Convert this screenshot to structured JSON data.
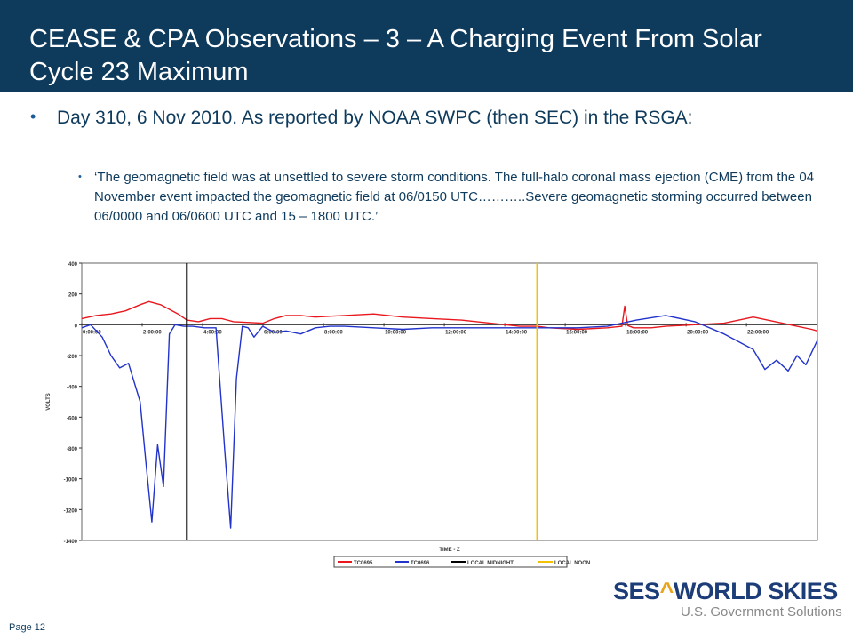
{
  "slide": {
    "title": "CEASE & CPA Observations  – 3 –  A Charging Event From Solar Cycle 23 Maximum",
    "bullet_main": "Day 310, 6 Nov 2010. As reported by NOAA SWPC (then SEC) in the RSGA:",
    "bullet_sub": "‘The geomagnetic field was at unsettled to severe storm conditions. The full-halo coronal mass ejection (CME) from the 04 November event impacted the geomagnetic field at 06/0150 UTC………..Severe geomagnetic storming occurred between 06/0000 and 06/0600 UTC and 15 – 1800 UTC.’",
    "page_label": "Page 12",
    "logo_part1": "SES",
    "logo_mark": "^",
    "logo_part2": "WORLD SKIES",
    "logo_sub": "U.S. Government Solutions",
    "colors": {
      "title_bg": "#0e3a5c",
      "text": "#0e3a5c",
      "logo_blue": "#1d3d78",
      "logo_gold": "#e8a41c"
    }
  },
  "chart_data": {
    "type": "line",
    "title": "",
    "xlabel": "TIME - Z",
    "ylabel": "VOLTS",
    "ylim": [
      -1400,
      400
    ],
    "y_ticks": [
      "400",
      "200",
      "0",
      "-200",
      "-400",
      "-600",
      "-800",
      "-1000",
      "-1200",
      "-1400"
    ],
    "x_ticks": [
      "0:00:00",
      "2:00:00",
      "4:00:00",
      "6:00:00",
      "8:00:00",
      "10:00:00",
      "12:00:00",
      "14:00:00",
      "16:00:00",
      "18:00:00",
      "20:00:00",
      "22:00:00"
    ],
    "xlim": [
      0,
      25.2
    ],
    "legend_position": "bottom",
    "vlines": [
      {
        "name": "LOCAL MIDNIGHT",
        "x": 3.6,
        "color": "#000000"
      },
      {
        "name": "LOCAL NOON",
        "x": 15.6,
        "color": "#f2c200"
      }
    ],
    "series": [
      {
        "name": "TC0695",
        "color": "#e8181e",
        "x": [
          0,
          0.5,
          1,
          1.5,
          2,
          2.3,
          2.7,
          3,
          3.3,
          3.6,
          4,
          4.4,
          4.8,
          5.2,
          6.2,
          6.6,
          7,
          7.5,
          8,
          9,
          10,
          11,
          12,
          13,
          14,
          15,
          15.6,
          16,
          17,
          18,
          18.5,
          18.6,
          18.7,
          18.9,
          19,
          19.5,
          20,
          21,
          22,
          23,
          24,
          25,
          25.2
        ],
        "y": [
          40,
          60,
          70,
          90,
          130,
          150,
          130,
          100,
          70,
          30,
          20,
          40,
          40,
          20,
          10,
          40,
          60,
          60,
          50,
          60,
          70,
          50,
          40,
          30,
          10,
          -10,
          -10,
          -20,
          -30,
          -20,
          -10,
          120,
          -5,
          -20,
          -20,
          -20,
          -10,
          0,
          10,
          50,
          10,
          -30,
          -40
        ]
      },
      {
        "name": "TC0696",
        "color": "#2233cc",
        "x": [
          0,
          0.3,
          0.7,
          1,
          1.3,
          1.6,
          2,
          2.2,
          2.4,
          2.6,
          2.8,
          3,
          3.2,
          3.5,
          3.8,
          4.2,
          4.6,
          4.9,
          5.1,
          5.3,
          5.5,
          5.7,
          5.9,
          6.2,
          6.6,
          7,
          7.5,
          8,
          8.5,
          9,
          10,
          11,
          12,
          13,
          14,
          15,
          16,
          17,
          18,
          19,
          20,
          21,
          22,
          23,
          23.4,
          23.8,
          24.2,
          24.5,
          24.8,
          25.2
        ],
        "y": [
          -20,
          0,
          -80,
          -200,
          -280,
          -250,
          -500,
          -900,
          -1280,
          -780,
          -1050,
          -60,
          0,
          -10,
          -10,
          -20,
          -20,
          -820,
          -1320,
          -350,
          -10,
          -20,
          -80,
          -10,
          -50,
          -40,
          -60,
          -20,
          -10,
          -10,
          -20,
          -30,
          -20,
          -20,
          -20,
          -20,
          -20,
          -20,
          -10,
          30,
          60,
          20,
          -60,
          -160,
          -290,
          -230,
          -300,
          -200,
          -260,
          -100
        ]
      }
    ],
    "legend": [
      "TC0695",
      "TC0696",
      "LOCAL MIDNIGHT",
      "LOCAL NOON"
    ]
  }
}
